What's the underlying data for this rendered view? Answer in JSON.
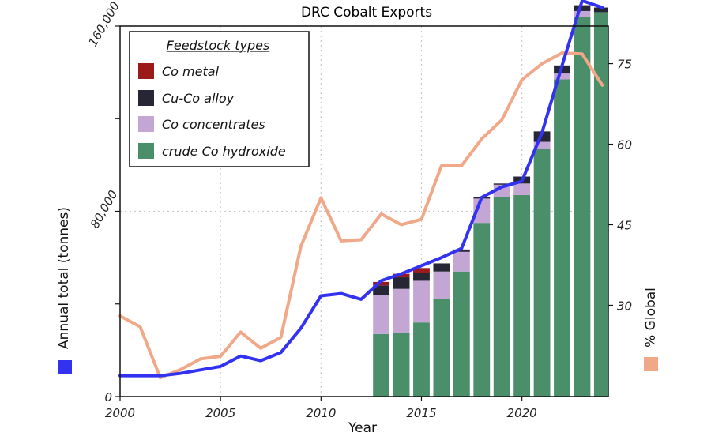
{
  "chart_data": {
    "type": "bar",
    "title": "DRC Cobalt Exports",
    "xlabel": "Year",
    "ylabel": "Annual total (tonnes)",
    "y2label": "% Global",
    "xlim": [
      2000,
      2024.3
    ],
    "ylim": [
      0,
      160000
    ],
    "y2lim": [
      13,
      82
    ],
    "xticks": [
      2000,
      2005,
      2010,
      2015,
      2020
    ],
    "yticks": [
      0,
      80000,
      160000
    ],
    "ytick_labels": [
      "0",
      "80,000",
      "160,000"
    ],
    "y2ticks": [
      30,
      45,
      60,
      75
    ],
    "grid": true,
    "legend": {
      "title": "Feedstock types",
      "placement": "top-left",
      "entries": [
        "Co metal",
        "Cu-Co alloy",
        "Co concentrates",
        "crude Co hydroxide"
      ]
    },
    "categories": [
      2013,
      2014,
      2015,
      2016,
      2017,
      2018,
      2019,
      2020,
      2021,
      2022,
      2023,
      2024
    ],
    "series": [
      {
        "name": "crude Co hydroxide",
        "color": "#4a8f6a",
        "values": [
          27000,
          27500,
          32000,
          42000,
          54000,
          75000,
          86000,
          87000,
          107000,
          137000,
          164000,
          166000
        ]
      },
      {
        "name": "Co concentrates",
        "color": "#c4a6d4",
        "values": [
          17000,
          19000,
          18000,
          12000,
          8500,
          10500,
          5500,
          5000,
          3000,
          2500,
          2500,
          0
        ]
      },
      {
        "name": "Cu-Co alloy",
        "color": "#262634",
        "values": [
          4000,
          5000,
          3500,
          3500,
          1000,
          500,
          500,
          3000,
          4500,
          3500,
          2500,
          2000
        ]
      },
      {
        "name": "Co metal",
        "color": "#9b1a1a",
        "values": [
          1500,
          1500,
          2000,
          0,
          0,
          0,
          0,
          0,
          0,
          0,
          0,
          0
        ]
      }
    ],
    "annual_total_line": {
      "color": "#3232f0",
      "x": [
        2000,
        2001,
        2002,
        2003,
        2004,
        2005,
        2006,
        2007,
        2008,
        2009,
        2010,
        2011,
        2012,
        2013,
        2014,
        2015,
        2016,
        2017,
        2018,
        2019,
        2020,
        2021,
        2022,
        2023,
        2024
      ],
      "y": [
        9000,
        9000,
        9000,
        10000,
        11500,
        13000,
        17500,
        15500,
        19000,
        29500,
        43500,
        44500,
        42000,
        50000,
        53000,
        56500,
        60000,
        64000,
        86000,
        90500,
        93000,
        114000,
        143000,
        171000,
        168000
      ]
    },
    "global_share_line": {
      "color": "#f0a888",
      "x": [
        2000,
        2001,
        2002,
        2003,
        2004,
        2005,
        2006,
        2007,
        2008,
        2009,
        2010,
        2011,
        2012,
        2013,
        2014,
        2015,
        2016,
        2017,
        2018,
        2019,
        2020,
        2021,
        2022,
        2023,
        2024
      ],
      "y": [
        28,
        26,
        16.5,
        18,
        20,
        20.5,
        25,
        22,
        24,
        41,
        50,
        42,
        42.2,
        47,
        45,
        46,
        56,
        56,
        61,
        64.5,
        72,
        75,
        77,
        76.8,
        71
      ]
    }
  }
}
